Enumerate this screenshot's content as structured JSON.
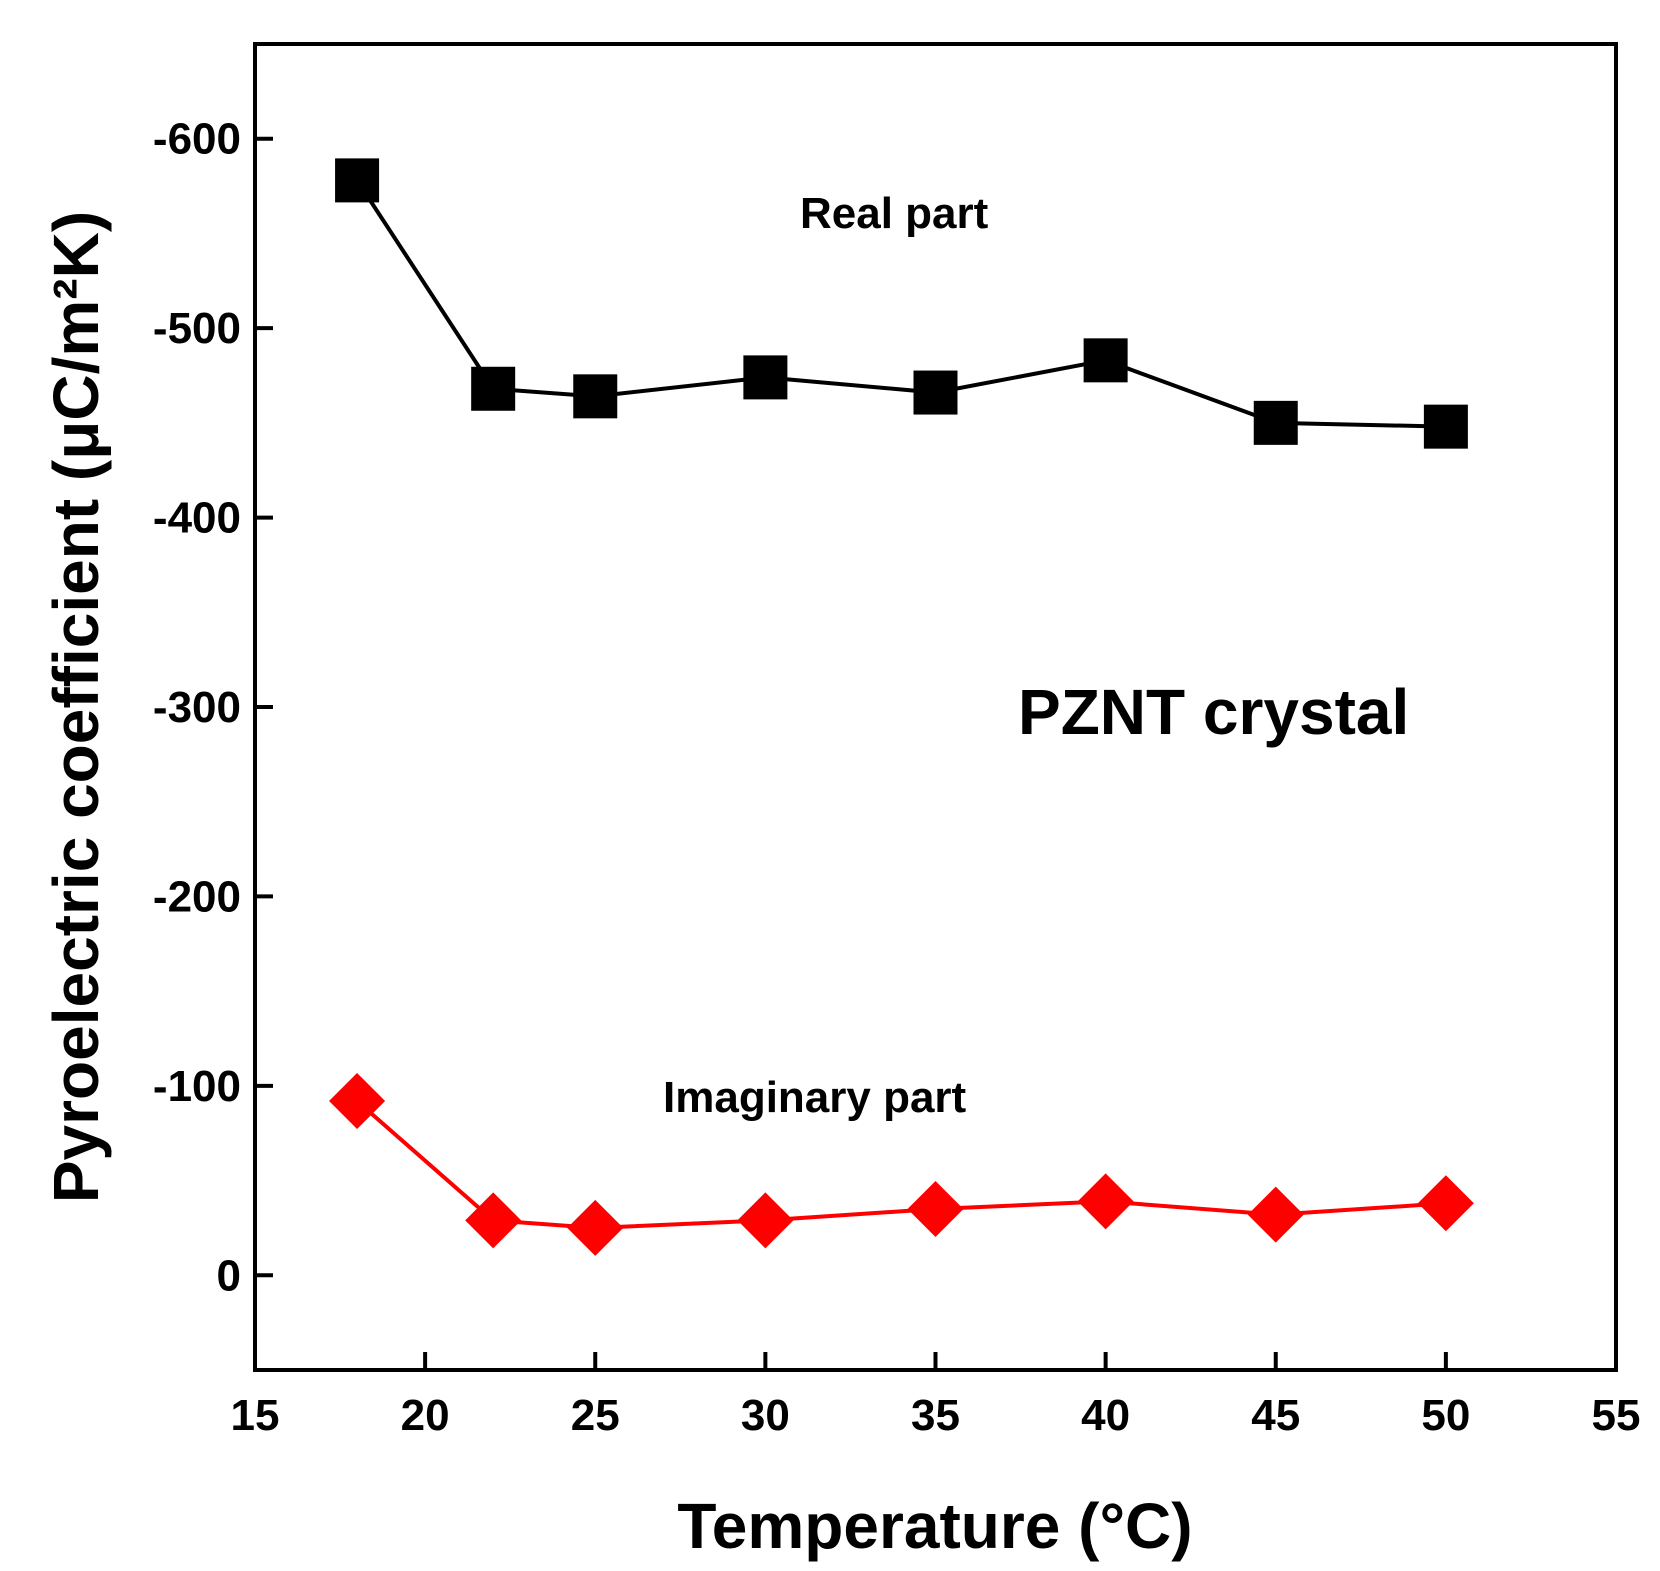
{
  "chart_data": {
    "type": "line",
    "title": "",
    "xlabel": "Temperature (°C)",
    "ylabel": "Pyroelectric coefficient (μC/m²K)",
    "xlim": [
      15,
      55
    ],
    "ylim": [
      50,
      -650
    ],
    "y_axis_inverted": true,
    "grid": false,
    "legend": "none",
    "x_ticks": [
      15,
      20,
      25,
      30,
      35,
      40,
      45,
      50,
      55
    ],
    "y_ticks": [
      -600,
      -500,
      -400,
      -300,
      -200,
      -100,
      0
    ],
    "x": [
      18,
      22,
      25,
      30,
      35,
      40,
      45,
      50
    ],
    "series": [
      {
        "name": "Real part",
        "marker": "square",
        "color": "#000000",
        "values": [
          -578,
          -468,
          -464,
          -474,
          -466,
          -483,
          -450,
          -448
        ]
      },
      {
        "name": "Imaginary part",
        "marker": "diamond",
        "color": "#ff0000",
        "values": [
          -92,
          -29,
          -25,
          -29,
          -35,
          -39,
          -32,
          -38
        ]
      }
    ],
    "annotations": [
      {
        "text": "PZNT crystal"
      }
    ]
  }
}
